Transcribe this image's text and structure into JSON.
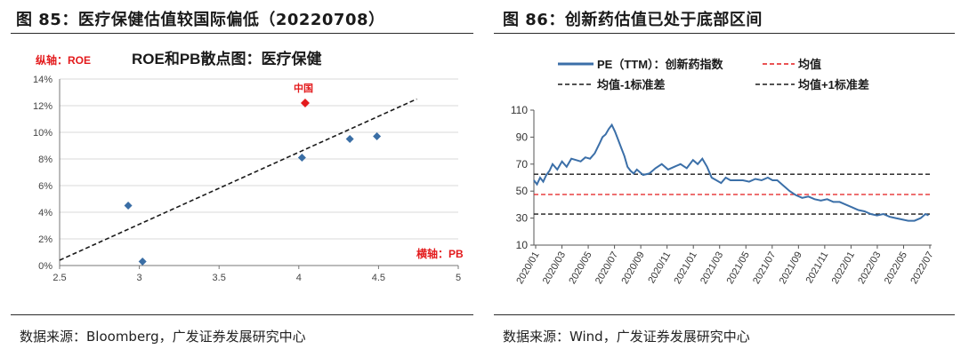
{
  "left_panel": {
    "figure_title": "图 85：医疗保健估值较国际偏低（20220708）",
    "source": "数据来源：Bloomberg，广发证券发展研究中心"
  },
  "right_panel": {
    "figure_title": "图 86：创新药估值已处于底部区间",
    "source": "数据来源：Wind，广发证券发展研究中心"
  },
  "chart_data": [
    {
      "type": "scatter",
      "title": "ROE和PB散点图：医疗保健",
      "ylabel": "纵轴：ROE",
      "xlabel": "横轴：PB",
      "xlim": [
        2.5,
        5
      ],
      "ylim": [
        0,
        14
      ],
      "x_ticks": [
        "2.5",
        "3",
        "3.5",
        "4",
        "4.5",
        "5"
      ],
      "y_ticks": [
        "0%",
        "2%",
        "4%",
        "6%",
        "8%",
        "10%",
        "12%",
        "14%"
      ],
      "points": [
        {
          "x": 2.93,
          "y": 4.5
        },
        {
          "x": 3.02,
          "y": 0.3
        },
        {
          "x": 4.02,
          "y": 8.1
        },
        {
          "x": 4.32,
          "y": 9.5
        },
        {
          "x": 4.49,
          "y": 9.7
        }
      ],
      "highlight_point": {
        "label": "中国",
        "x": 4.04,
        "y": 12.2,
        "color": "#e31a1c"
      },
      "trendline": {
        "style": "dashed",
        "from": [
          2.5,
          0.4
        ],
        "to": [
          4.74,
          12.5
        ]
      },
      "point_color": "#3a6ea5"
    },
    {
      "type": "line",
      "legend": {
        "series_label": "PE（TTM）：创新药指数",
        "mean_label": "均值",
        "minus_label": "均值-1标准差",
        "plus_label": "均值+1标准差"
      },
      "ylim": [
        10,
        110
      ],
      "y_ticks": [
        "10",
        "30",
        "50",
        "70",
        "90",
        "110"
      ],
      "x_ticks": [
        "2020/01",
        "2020/03",
        "2020/05",
        "2020/07",
        "2020/09",
        "2020/11",
        "2021/01",
        "2021/03",
        "2021/05",
        "2021/07",
        "2021/09",
        "2021/11",
        "2022/01",
        "2022/03",
        "2022/05",
        "2022/07"
      ],
      "x_start": 2020.0,
      "x_end": 2022.55,
      "mean": 47.5,
      "plus_one_sd": 62.5,
      "minus_one_sd": 33,
      "series": [
        {
          "name": "PE（TTM）：创新药指数",
          "color": "#3b6fa8",
          "x": [
            2020.0,
            2020.02,
            2020.04,
            2020.06,
            2020.08,
            2020.1,
            2020.12,
            2020.15,
            2020.18,
            2020.21,
            2020.24,
            2020.27,
            2020.3,
            2020.33,
            2020.36,
            2020.39,
            2020.42,
            2020.44,
            2020.46,
            2020.48,
            2020.5,
            2020.52,
            2020.54,
            2020.56,
            2020.58,
            2020.6,
            2020.62,
            2020.64,
            2020.66,
            2020.7,
            2020.74,
            2020.78,
            2020.82,
            2020.86,
            2020.9,
            2020.94,
            2020.98,
            2021.02,
            2021.05,
            2021.08,
            2021.11,
            2021.14,
            2021.17,
            2021.2,
            2021.23,
            2021.26,
            2021.3,
            2021.34,
            2021.38,
            2021.42,
            2021.46,
            2021.5,
            2021.53,
            2021.56,
            2021.6,
            2021.64,
            2021.68,
            2021.72,
            2021.76,
            2021.8,
            2021.84,
            2021.88,
            2021.92,
            2021.96,
            2022.0,
            2022.04,
            2022.08,
            2022.12,
            2022.16,
            2022.2,
            2022.24,
            2022.28,
            2022.32,
            2022.36,
            2022.4,
            2022.44,
            2022.48,
            2022.51,
            2022.53
          ],
          "y": [
            58,
            55,
            60,
            57,
            62,
            65,
            70,
            66,
            72,
            68,
            74,
            73,
            72,
            75,
            74,
            78,
            85,
            90,
            92,
            96,
            99,
            94,
            88,
            82,
            76,
            68,
            65,
            63,
            66,
            62,
            63,
            67,
            70,
            66,
            68,
            70,
            67,
            73,
            70,
            74,
            68,
            60,
            58,
            56,
            60,
            58,
            58,
            58,
            57,
            59,
            58,
            60,
            58,
            58,
            54,
            50,
            47,
            45,
            46,
            44,
            43,
            44,
            42,
            42,
            40,
            38,
            36,
            35,
            33,
            32,
            33,
            31,
            30,
            29,
            28,
            28,
            30,
            33,
            32
          ]
        }
      ]
    }
  ]
}
